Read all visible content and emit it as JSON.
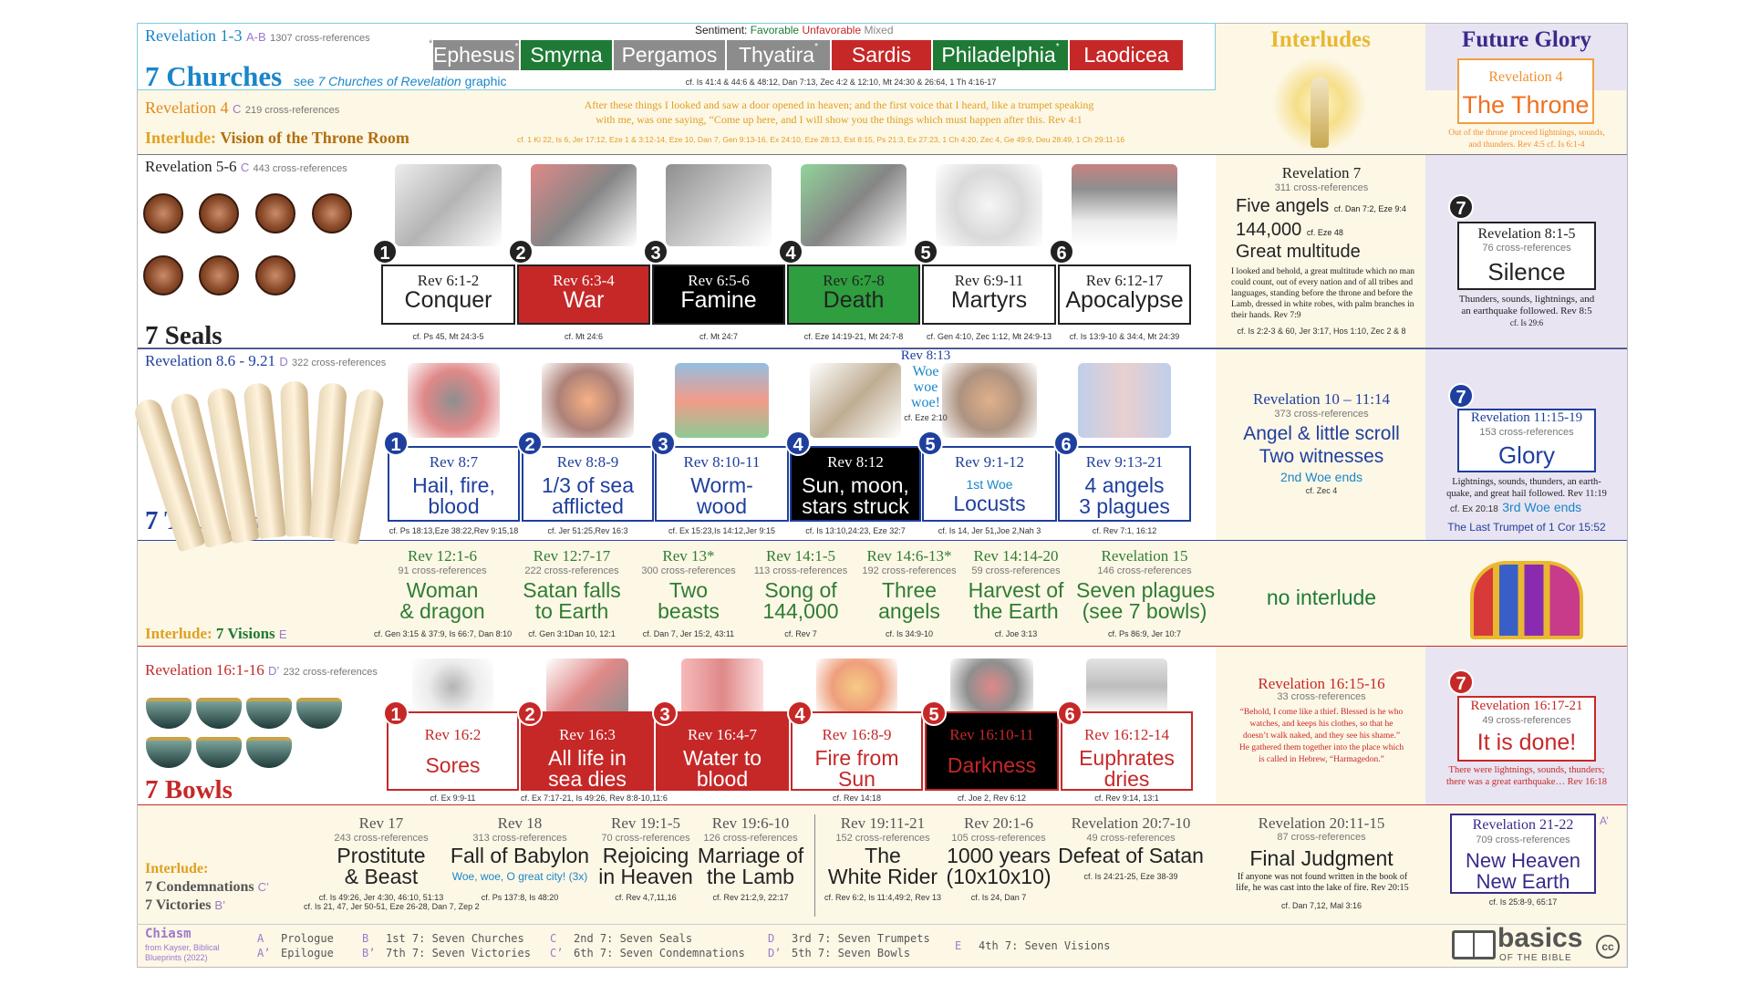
{
  "churches": {
    "ref": "Revelation 1-3",
    "code": "A-B",
    "xref": "1307 cross-references",
    "title": "7 Churches",
    "see_pre": "see",
    "see_link": "7 Churches of Revelation",
    "see_post": "graphic",
    "sentiment_label": "Sentiment:",
    "sentiment_fav": "Favorable",
    "sentiment_unfav": "Unfavorable",
    "sentiment_mixed": "Mixed",
    "chips": [
      {
        "name": "Ephesus",
        "mark": "**",
        "color": "#8c8c8c"
      },
      {
        "name": "Smyrna",
        "mark": "",
        "color": "#1f7a36"
      },
      {
        "name": "Pergamos",
        "mark": "",
        "color": "#8c8c8c"
      },
      {
        "name": "Thyatira",
        "mark": "*",
        "color": "#8c8c8c"
      },
      {
        "name": "Sardis",
        "mark": "",
        "color": "#c62828"
      },
      {
        "name": "Philadelphia",
        "mark": "*",
        "color": "#1f7a36"
      },
      {
        "name": "Laodicea",
        "mark": "",
        "color": "#c62828"
      }
    ],
    "pre_mark": "*",
    "cf": "cf. Is 41:4 & 44:6 & 48:12, Dan 7:13, Zec 4:2 & 12:10, Mt 24:30 & 26:64, 1 Th 4:16-17"
  },
  "throne_room": {
    "ref": "Revelation 4",
    "code": "C",
    "xref": "219 cross-references",
    "title_pre": "Interlude:",
    "title": "Vision of the Throne Room",
    "quote1": "After these things I looked and saw a door opened in heaven; and the first voice that I heard, like a trumpet speaking",
    "quote2": "with me, was one saying, “Come up here, and I will show you the things which must happen after this. Rev 4:1",
    "cf": "cf. 1 Ki 22, Is 6, Jer 17:12, Eze 1 & 3:12-14, Eze 10,  Dan 7, Gen 9:13-16, Ex 24:10, Eze 28:13, Est 8:15, Ps 21:3, Ex 27:23, 1 Ch 4:20, Zec 4, Ge 49:9, Deu 28:49, 1 Ch 29:11-16"
  },
  "col_headers": {
    "interludes": "Interludes",
    "future_glory": "Future Glory"
  },
  "throne": {
    "ref": "Revelation 4",
    "title": "The Throne",
    "note1": "Out of the throne proceed lightnings, sounds,",
    "note2": "and thunders. Rev 4:5   cf. Is 6:1-4"
  },
  "seals": {
    "ref": "Revelation 5-6",
    "code": "C",
    "xref": "443 cross-references",
    "title": "7 Seals",
    "items": [
      {
        "n": "1",
        "ref": "Rev 6:1-2",
        "title": "Conquer",
        "cf": "cf. Ps 45, Mt 24:3-5"
      },
      {
        "n": "2",
        "ref": "Rev 6:3-4",
        "title": "War",
        "cf": "cf. Mt 24:6"
      },
      {
        "n": "3",
        "ref": "Rev 6:5-6",
        "title": "Famine",
        "cf": "cf. Mt 24:7"
      },
      {
        "n": "4",
        "ref": "Rev 6:7-8",
        "title": "Death",
        "cf": "cf. Eze 14:19-21, Mt 24:7-8"
      },
      {
        "n": "5",
        "ref": "Rev 6:9-11",
        "title": "Martyrs",
        "cf": "cf. Gen 4:10, Zec 1:12, Mt 24:9-13"
      },
      {
        "n": "6",
        "ref": "Rev 6:12-17",
        "title": "Apocalypse",
        "cf": "cf. Is 13:9-10 & 34:4, Mt 24:39"
      }
    ]
  },
  "rev7": {
    "ref": "Revelation 7",
    "xref": "311 cross-references",
    "l1": "Five angels",
    "l1cf": "cf. Dan 7:2, Eze 9:4",
    "l2": "144,000",
    "l2cf": "cf. Eze 48",
    "l3": "Great multitude",
    "quote": "I looked and behold, a great multitude which no man could count, out of every nation and of all tribes and languages, standing before the throne and before the Lamb, dressed in white robes, with palm branches in their hands. Rev 7:9",
    "cf": "cf. Is 2:2-3 & 60, Jer 3:17, Hos 1:10, Zec 2 & 8"
  },
  "silence": {
    "n": "7",
    "ref": "Revelation 8:1-5",
    "xref": "76 cross-references",
    "title": "Silence",
    "note1": "Thunders, sounds, lightnings, and",
    "note2": "an earthquake followed. Rev 8:5",
    "cf": "cf. Is 29:6"
  },
  "trumpets": {
    "ref": "Revelation 8.6 - 9.21",
    "code": "D",
    "xref": "322 cross-references",
    "title": "7 Trumpets",
    "woe_ref": "Rev 8:13",
    "woe1": "Woe",
    "woe2": "woe",
    "woe3": "woe!",
    "woe_cf": "cf. Eze 2:10",
    "items": [
      {
        "n": "1",
        "ref": "Rev 8:7",
        "t1": "Hail, fire,",
        "t2": "blood",
        "cf": "cf. Ps 18:13,Eze 38:22,Rev 9:15,18"
      },
      {
        "n": "2",
        "ref": "Rev 8:8-9",
        "t1": "1/3 of sea",
        "t2": "afflicted",
        "cf": "cf. Jer 51:25,Rev 16:3"
      },
      {
        "n": "3",
        "ref": "Rev 8:10-11",
        "t1": "Worm-",
        "t2": "wood",
        "cf": "cf. Ex 15:23,Is 14:12,Jer 9:15"
      },
      {
        "n": "4",
        "ref": "Rev 8:12",
        "t1": "Sun, moon,",
        "t2": "stars struck",
        "cf": "cf. Is 13:10,24:23, Eze 32:7"
      },
      {
        "n": "5",
        "ref": "Rev 9:1-12",
        "t1": "1st Woe",
        "t2": "Locusts",
        "cf": "cf. Is 14, Jer 51,Joe 2,Nah 3"
      },
      {
        "n": "6",
        "ref": "Rev 9:13-21",
        "t1": "4 angels",
        "t2": "3 plagues",
        "cf": "cf. Rev 7:1, 16:12"
      }
    ]
  },
  "rev10": {
    "ref": "Revelation 10 – 11:14",
    "xref": "373 cross-references",
    "l1": "Angel & little scroll",
    "l2": "Two witnesses",
    "l3": "2nd Woe ends",
    "cf": "cf. Zec 4"
  },
  "glory": {
    "n": "7",
    "ref": "Revelation 11:15-19",
    "xref": "153 cross-references",
    "title": "Glory",
    "note1": "Lightnings, sounds, thunders, an earth-",
    "note2": "quake, and great hail followed. Rev 11:19",
    "cf": "cf. Ex 20:18",
    "woe": "3rd Woe ends",
    "last": "The Last Trumpet of 1 Cor 15:52"
  },
  "visions": {
    "label_pre": "Interlude:",
    "label": "7 Visions",
    "code": "E",
    "no_interlude": "no interlude",
    "items": [
      {
        "ref": "Rev 12:1-6",
        "xref": "91 cross-references",
        "t1": "Woman",
        "t2": "& dragon",
        "cf": "cf. Gen 3:15 & 37:9, Is 66:7, Dan 8:10"
      },
      {
        "ref": "Rev 12:7-17",
        "xref": "222 cross-references",
        "t1": "Satan falls",
        "t2": "to Earth",
        "cf": "cf. Gen 3:1Dan 10, 12:1"
      },
      {
        "ref": "Rev 13*",
        "xref": "300 cross-references",
        "t1": "Two",
        "t2": "beasts",
        "cf": "cf. Dan 7, Jer 15:2, 43:11"
      },
      {
        "ref": "Rev 14:1-5",
        "xref": "113 cross-references",
        "t1": "Song of",
        "t2": "144,000",
        "cf": "cf. Rev 7"
      },
      {
        "ref": "Rev 14:6-13*",
        "xref": "192 cross-references",
        "t1": "Three",
        "t2": "angels",
        "cf": "cf. Is 34:9-10"
      },
      {
        "ref": "Rev 14:14-20",
        "xref": "59 cross-references",
        "t1": "Harvest of",
        "t2": "the Earth",
        "cf": "cf. Joe 3:13"
      },
      {
        "ref": "Revelation 15",
        "xref": "146 cross-references",
        "t1": "Seven plagues",
        "t2": "(see 7 bowls)",
        "cf": "cf. Ps 86:9, Jer 10:7"
      }
    ]
  },
  "bowls": {
    "ref": "Revelation 16:1-16",
    "code": "D’",
    "xref": "232 cross-references",
    "title": "7 Bowls",
    "items": [
      {
        "n": "1",
        "ref": "Rev 16:2",
        "t1": "",
        "t2": "Sores",
        "cf": "cf. Ex 9:9-11"
      },
      {
        "n": "2",
        "ref": "Rev 16:3",
        "t1": "All life in",
        "t2": "sea dies",
        "cf": "cf. Ex 7:17-21, Is 49:26, Rev 8:8-10,11:6"
      },
      {
        "n": "3",
        "ref": "Rev 16:4-7",
        "t1": "Water to",
        "t2": "blood",
        "cf": ""
      },
      {
        "n": "4",
        "ref": "Rev 16:8-9",
        "t1": "Fire from",
        "t2": "Sun",
        "cf": "cf. Rev 14:18"
      },
      {
        "n": "5",
        "ref": "Rev 16:10-11",
        "t1": "",
        "t2": "Darkness",
        "cf": "cf. Joe 2, Rev 6:12"
      },
      {
        "n": "6",
        "ref": "Rev 16:12-14",
        "t1": "Euphrates",
        "t2": "dries",
        "cf": "cf. Rev 9:14, 13:1"
      }
    ]
  },
  "rev1615": {
    "ref": "Revelation 16:15-16",
    "xref": "33 cross-references",
    "quote": "“Behold, I come like a thief. Blessed is he who watches, and keeps his clothes, so that he doesn’t walk naked, and they see his shame.” He gathered them together into the place which is called in Hebrew, “Harmagedon.”"
  },
  "done": {
    "n": "7",
    "ref": "Revelation 16:17-21",
    "xref": "49 cross-references",
    "title": "It is done!",
    "note1": "There were lightnings, sounds, thunders;",
    "note2": "there was a great earthquake… Rev 16:18"
  },
  "condemn": {
    "label_pre": "Interlude:",
    "l1": "7 Condemnations",
    "l1code": "C’",
    "l2": "7 Victories",
    "l2code": "B’",
    "items": [
      {
        "ref": "Rev 17",
        "xref": "243 cross-references",
        "t1": "Prostitute",
        "t2": "& Beast",
        "cf": "cf. Is 49:26, Jer 4:30, 46:10, 51:13",
        "cf2": "cf. Is 21, 47, Jer 50-51, Eze 26-28, Dan 7, Zep 2"
      },
      {
        "ref": "Rev 18",
        "xref": "313 cross-references",
        "t1": "Fall of Babylon",
        "t2": "Woe, woe, O great city! (3x)",
        "cf": "cf. Ps 137:8, Is 48:20",
        "cf2": ""
      },
      {
        "ref": "Rev 19:1-5",
        "xref": "70 cross-references",
        "t1": "Rejoicing",
        "t2": "in Heaven",
        "cf": "cf. Rev 4,7,11,16",
        "cf2": ""
      },
      {
        "ref": "Rev 19:6-10",
        "xref": "126 cross-references",
        "t1": "Marriage of",
        "t2": "the Lamb",
        "cf": "cf. Rev 21:2,9, 22:17",
        "cf2": ""
      },
      {
        "ref": "Rev 19:11-21",
        "xref": "152 cross-references",
        "t1": "The",
        "t2": "White Rider",
        "cf": "cf. Rev 6:2, Is 11:4,49:2, Rev 13",
        "cf2": ""
      },
      {
        "ref": "Rev 20:1-6",
        "xref": "105 cross-references",
        "t1": "1000 years",
        "t2": "(10x10x10)",
        "cf": "cf. Is 24, Dan 7",
        "cf2": ""
      },
      {
        "ref": "Revelation 20:7-10",
        "xref": "49 cross-references",
        "t1": "Defeat of Satan",
        "t2": "",
        "cf": "cf. Is 24:21-25, Eze 38-39",
        "cf2": ""
      }
    ]
  },
  "judgment": {
    "ref": "Revelation 20:11-15",
    "xref": "87 cross-references",
    "title": "Final Judgment",
    "quote": "If anyone was not found written in the book of life, he was cast into the lake of fire. Rev 20:15",
    "cf": "cf. Dan 7,12, Mal 3:16"
  },
  "newearth": {
    "ref": "Revelation 21-22",
    "code": "A’",
    "xref": "709 cross-references",
    "l1": "New Heaven",
    "l2": "New Earth",
    "cf": "cf. Is 25:8-9, 65:17"
  },
  "chiasm": {
    "title": "Chiasm",
    "src1": "from Kayser, Biblical",
    "src2": "Blueprints (2022)",
    "a": [
      {
        "k": "A",
        "v": "Prologue"
      },
      {
        "k": "A’",
        "v": "Epilogue"
      }
    ],
    "b": [
      {
        "k": "B",
        "v": "1st 7: Seven Churches"
      },
      {
        "k": "B’",
        "v": "7th 7: Seven Victories"
      }
    ],
    "c": [
      {
        "k": "C",
        "v": "2nd 7: Seven Seals"
      },
      {
        "k": "C’",
        "v": "6th 7: Seven Condemnations"
      }
    ],
    "d": [
      {
        "k": "D",
        "v": "3rd 7: Seven Trumpets"
      },
      {
        "k": "D’",
        "v": "5th 7: Seven Bowls"
      }
    ],
    "e": [
      {
        "k": "E",
        "v": "4th 7: Seven Visions"
      }
    ]
  },
  "logo": {
    "l1": "basics",
    "l2": "OF THE BIBLE",
    "cc": "cc"
  },
  "colors": {
    "green": "#1f7a36",
    "red": "#c62828",
    "blue": "#1f3f9e",
    "gold": "#e0a020",
    "cream": "#fdf7e6",
    "lavender": "#e9e4f2",
    "purple": "#3a2a8a"
  }
}
